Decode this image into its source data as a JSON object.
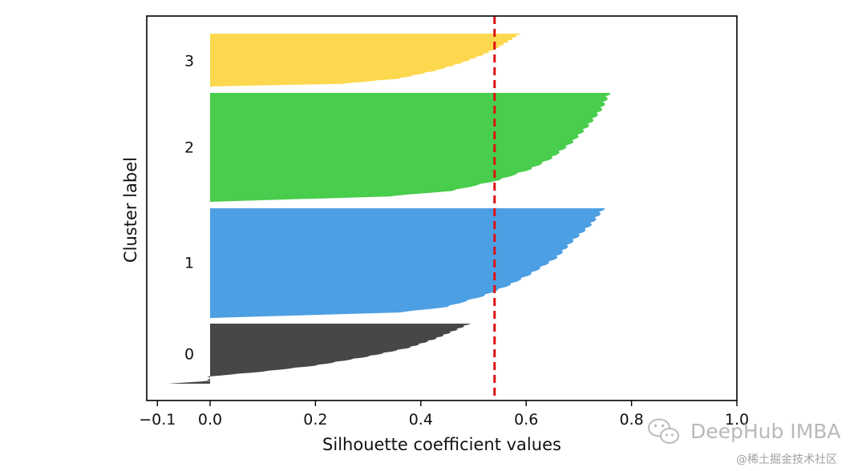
{
  "chart_data": {
    "type": "silhouette",
    "xlabel": "Silhouette coefficient values",
    "ylabel": "Cluster label",
    "xlim": [
      -0.12,
      1.0
    ],
    "xticks": [
      {
        "value": -0.1,
        "label": "−0.1"
      },
      {
        "value": 0.0,
        "label": "0.0"
      },
      {
        "value": 0.2,
        "label": "0.2"
      },
      {
        "value": 0.4,
        "label": "0.4"
      },
      {
        "value": 0.6,
        "label": "0.6"
      },
      {
        "value": 0.8,
        "label": "0.8"
      },
      {
        "value": 1.0,
        "label": "1.0"
      }
    ],
    "average_silhouette": 0.54,
    "average_line_color": "#dd1111",
    "series": [
      {
        "name": "0",
        "label": "0",
        "color": "#474747",
        "min": -0.08,
        "max": 0.495,
        "profile": [
          [
            0.0,
            -0.08
          ],
          [
            0.02,
            -0.04
          ],
          [
            0.05,
            0.0
          ],
          [
            0.12,
            0.0
          ],
          [
            0.2,
            0.1
          ],
          [
            0.3,
            0.2
          ],
          [
            0.45,
            0.3
          ],
          [
            0.6,
            0.38
          ],
          [
            0.75,
            0.43
          ],
          [
            0.9,
            0.47
          ],
          [
            1.0,
            0.495
          ]
        ]
      },
      {
        "name": "1",
        "label": "1",
        "color": "#4d9fe3",
        "min": 0.0,
        "max": 0.75,
        "profile": [
          [
            0.0,
            0.0
          ],
          [
            0.05,
            0.36
          ],
          [
            0.1,
            0.45
          ],
          [
            0.2,
            0.52
          ],
          [
            0.3,
            0.57
          ],
          [
            0.4,
            0.61
          ],
          [
            0.55,
            0.66
          ],
          [
            0.7,
            0.69
          ],
          [
            0.85,
            0.725
          ],
          [
            1.0,
            0.75
          ]
        ]
      },
      {
        "name": "2",
        "label": "2",
        "color": "#48cd4c",
        "min": 0.0,
        "max": 0.76,
        "profile": [
          [
            0.0,
            0.0
          ],
          [
            0.05,
            0.34
          ],
          [
            0.1,
            0.46
          ],
          [
            0.2,
            0.55
          ],
          [
            0.3,
            0.61
          ],
          [
            0.4,
            0.65
          ],
          [
            0.55,
            0.69
          ],
          [
            0.7,
            0.72
          ],
          [
            0.85,
            0.745
          ],
          [
            1.0,
            0.76
          ]
        ]
      },
      {
        "name": "3",
        "label": "3",
        "color": "#fdd84e",
        "min": 0.0,
        "max": 0.59,
        "profile": [
          [
            0.0,
            0.0
          ],
          [
            0.05,
            0.25
          ],
          [
            0.15,
            0.36
          ],
          [
            0.3,
            0.43
          ],
          [
            0.45,
            0.48
          ],
          [
            0.6,
            0.52
          ],
          [
            0.75,
            0.55
          ],
          [
            0.9,
            0.575
          ],
          [
            1.0,
            0.59
          ]
        ]
      }
    ]
  },
  "watermark": {
    "main": "DeepHub IMBA",
    "sub": "@稀土掘金技术社区",
    "icon": "wechat-icon"
  }
}
